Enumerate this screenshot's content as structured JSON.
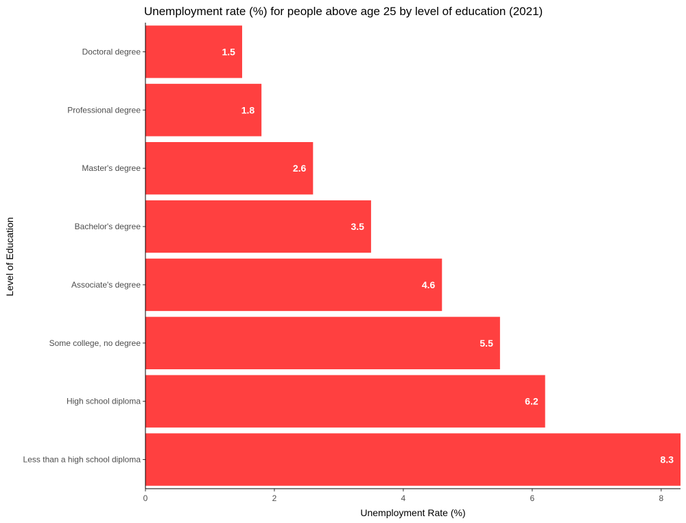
{
  "chart_data": {
    "type": "bar",
    "orientation": "horizontal",
    "title": "Unemployment rate (%) for people above age 25 by level of education (2021)",
    "xlabel": "Unemployment Rate (%)",
    "ylabel": "Level of Education",
    "categories": [
      "Doctoral degree",
      "Professional degree",
      "Master's degree",
      "Bachelor's degree",
      "Associate's degree",
      "Some college, no degree",
      "High school diploma",
      "Less than a high school diploma"
    ],
    "values": [
      1.5,
      1.8,
      2.6,
      3.5,
      4.6,
      5.5,
      6.2,
      8.3
    ],
    "value_labels": [
      "1.5",
      "1.8",
      "2.6",
      "3.5",
      "4.6",
      "5.5",
      "6.2",
      "8.3"
    ],
    "xlim": [
      0,
      8.3
    ],
    "x_ticks": [
      0,
      2,
      4,
      6,
      8
    ],
    "x_tick_labels": [
      "0",
      "2",
      "4",
      "6",
      "8"
    ],
    "grid": false,
    "bar_color": "#FF4040"
  }
}
